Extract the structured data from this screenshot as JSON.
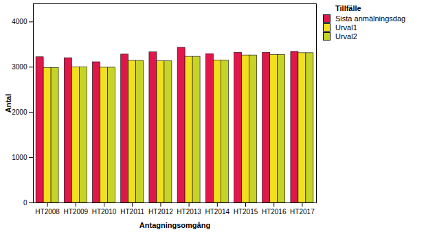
{
  "chart_data": {
    "type": "bar",
    "x_label": "Antagningsomgång",
    "y_label": "Antal",
    "legend_title": "Tillfälle",
    "legend": "top-right",
    "categories": [
      "HT2008",
      "HT2009",
      "HT2010",
      "HT2011",
      "HT2012",
      "HT2013",
      "HT2014",
      "HT2015",
      "HT2016",
      "HT2017"
    ],
    "series": [
      {
        "name": "Sista anmälningsdag",
        "color": "#e0174a",
        "values": [
          3220,
          3200,
          3110,
          3280,
          3330,
          3430,
          3290,
          3320,
          3320,
          3340
        ]
      },
      {
        "name": "Urval1",
        "color": "#f2df1e",
        "values": [
          2985,
          3000,
          2990,
          3140,
          3130,
          3230,
          3150,
          3260,
          3270,
          3310
        ]
      },
      {
        "name": "Urval2",
        "color": "#c6d42a",
        "values": [
          2985,
          3000,
          2990,
          3140,
          3130,
          3230,
          3150,
          3260,
          3270,
          3310
        ]
      }
    ],
    "ylim": [
      0,
      4400
    ],
    "yticks": [
      0,
      1000,
      2000,
      3000,
      4000
    ],
    "grid": false
  }
}
